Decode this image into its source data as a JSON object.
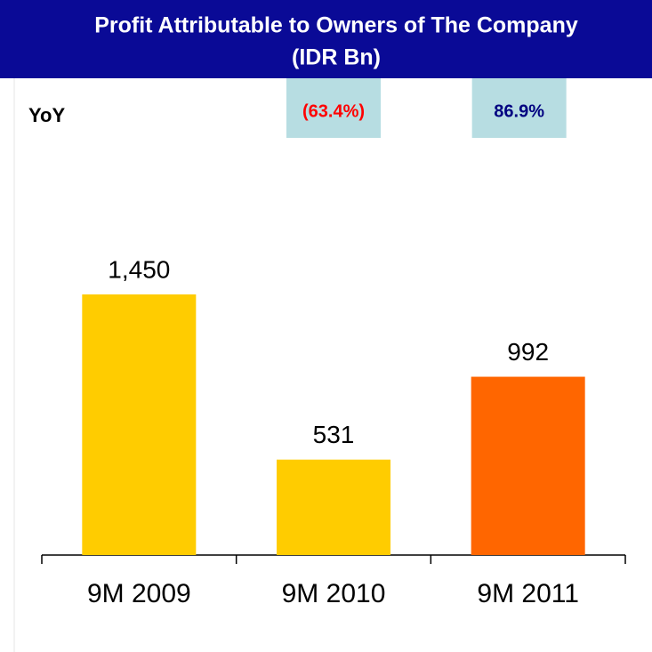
{
  "chart_data": {
    "type": "bar",
    "title": "Profit Attributable to Owners of The Company",
    "subtitle": "(IDR Bn)",
    "categories": [
      "9M 2009",
      "9M 2010",
      "9M 2011"
    ],
    "values": [
      1450,
      531,
      992
    ],
    "value_labels": [
      "1,450",
      "531",
      "992"
    ],
    "colors": [
      "#ffcc00",
      "#ffcc00",
      "#ff6600"
    ],
    "yoy": {
      "label": "YoY",
      "values": [
        -63.4,
        86.9
      ],
      "value_labels": [
        "(63.4%)",
        "86.9%"
      ],
      "colors": [
        "#ff0000",
        "#000080"
      ]
    }
  }
}
